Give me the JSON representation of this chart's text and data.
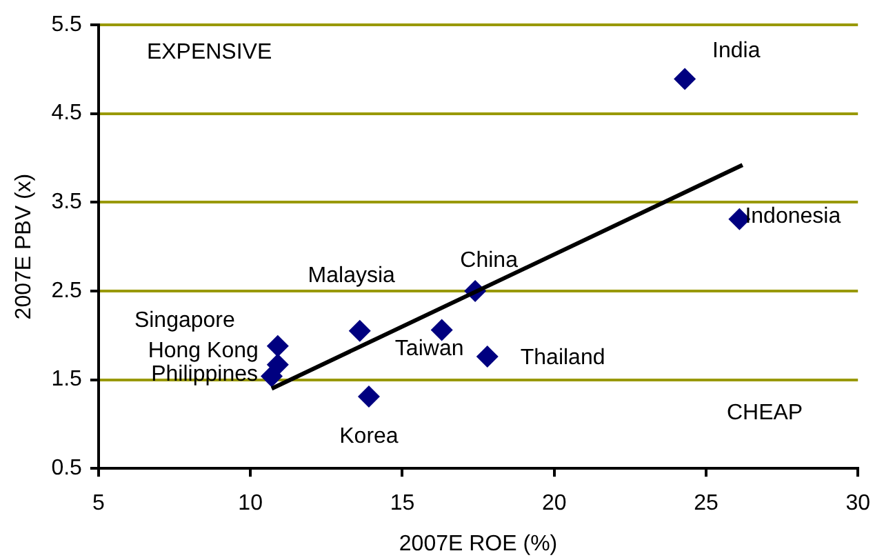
{
  "chart_data": {
    "type": "scatter",
    "xlabel": "2007E ROE (%)",
    "ylabel": "2007E PBV (x)",
    "xlim": [
      5,
      30
    ],
    "xticks": [
      5,
      10,
      15,
      20,
      25,
      30
    ],
    "ylim": [
      0.5,
      5.5
    ],
    "yticks": [
      0.5,
      1.5,
      2.5,
      3.5,
      4.5,
      5.5
    ],
    "grid": "y",
    "legend": false,
    "annotations": [
      "EXPENSIVE",
      "CHEAP"
    ],
    "series": [
      {
        "name": "India",
        "color": "#000080",
        "marker": "diamond",
        "x": [
          24.3
        ],
        "values": [
          4.89
        ]
      },
      {
        "name": "Indonesia",
        "color": "#000080",
        "marker": "diamond",
        "x": [
          26.1
        ],
        "values": [
          3.31
        ]
      },
      {
        "name": "China",
        "color": "#000080",
        "marker": "diamond",
        "x": [
          17.4
        ],
        "values": [
          2.5
        ]
      },
      {
        "name": "Malaysia",
        "color": "#000080",
        "marker": "diamond",
        "x": [
          13.6
        ],
        "values": [
          2.05
        ]
      },
      {
        "name": "Taiwan",
        "color": "#000080",
        "marker": "diamond",
        "x": [
          16.3
        ],
        "values": [
          2.06
        ]
      },
      {
        "name": "Thailand",
        "color": "#000080",
        "marker": "diamond",
        "x": [
          17.8
        ],
        "values": [
          1.76
        ]
      },
      {
        "name": "Korea",
        "color": "#000080",
        "marker": "diamond",
        "x": [
          13.9
        ],
        "values": [
          1.31
        ]
      },
      {
        "name": "Singapore",
        "color": "#000080",
        "marker": "diamond",
        "x": [
          10.9
        ],
        "values": [
          1.88
        ]
      },
      {
        "name": "Hong Kong",
        "color": "#000080",
        "marker": "diamond",
        "x": [
          10.9
        ],
        "values": [
          1.67
        ]
      },
      {
        "name": "Philippines",
        "color": "#000080",
        "marker": "diamond",
        "x": [
          10.7
        ],
        "values": [
          1.54
        ]
      },
      {
        "type": "line",
        "color": "#000000",
        "marker": "none",
        "x": [
          10.7,
          26.2
        ],
        "values": [
          1.4,
          3.92
        ]
      }
    ]
  }
}
